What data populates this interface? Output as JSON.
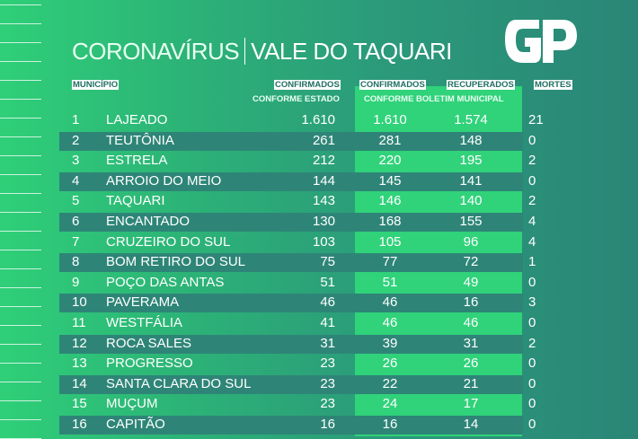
{
  "title": {
    "left": "CORONAVÍRUS",
    "right": "VALE DO TAQUARI"
  },
  "logo": "GP",
  "headers": {
    "municipio": "MUNICÍPIO",
    "conf_estado": "CONFIRMADOS",
    "conf_estado_sub": "CONFORME ESTADO",
    "conf_mun": "CONFIRMADOS",
    "recuperados": "RECUPERADOS",
    "boletim_sub": "CONFORME BOLETIM MUNICIPAL",
    "mortes": "MORTES"
  },
  "rows": [
    {
      "n": "1",
      "name": "LAJEADO",
      "estado": "1.610",
      "municipal": "1.610",
      "recuperados": "1.574",
      "mortes": "21"
    },
    {
      "n": "2",
      "name": "TEUTÔNIA",
      "estado": "261",
      "municipal": "281",
      "recuperados": "148",
      "mortes": "0"
    },
    {
      "n": "3",
      "name": "ESTRELA",
      "estado": "212",
      "municipal": "220",
      "recuperados": "195",
      "mortes": "2"
    },
    {
      "n": "4",
      "name": "ARROIO DO MEIO",
      "estado": "144",
      "municipal": "145",
      "recuperados": "141",
      "mortes": "0"
    },
    {
      "n": "5",
      "name": "TAQUARI",
      "estado": "143",
      "municipal": "146",
      "recuperados": "140",
      "mortes": "2"
    },
    {
      "n": "6",
      "name": "ENCANTADO",
      "estado": "130",
      "municipal": "168",
      "recuperados": "155",
      "mortes": "4"
    },
    {
      "n": "7",
      "name": "CRUZEIRO DO SUL",
      "estado": "103",
      "municipal": "105",
      "recuperados": "96",
      "mortes": "4"
    },
    {
      "n": "8",
      "name": "BOM RETIRO DO SUL",
      "estado": "75",
      "municipal": "77",
      "recuperados": "72",
      "mortes": "1"
    },
    {
      "n": "9",
      "name": "POÇO DAS ANTAS",
      "estado": "51",
      "municipal": "51",
      "recuperados": "49",
      "mortes": "0"
    },
    {
      "n": "10",
      "name": "PAVERAMA",
      "estado": "46",
      "municipal": "46",
      "recuperados": "16",
      "mortes": "3"
    },
    {
      "n": "11",
      "name": "WESTFÁLIA",
      "estado": "41",
      "municipal": "46",
      "recuperados": "46",
      "mortes": "0"
    },
    {
      "n": "12",
      "name": "ROCA SALES",
      "estado": "31",
      "municipal": "39",
      "recuperados": "31",
      "mortes": "2"
    },
    {
      "n": "13",
      "name": "PROGRESSO",
      "estado": "23",
      "municipal": "26",
      "recuperados": "26",
      "mortes": "0"
    },
    {
      "n": "14",
      "name": "SANTA CLARA DO SUL",
      "estado": "23",
      "municipal": "22",
      "recuperados": "21",
      "mortes": "0"
    },
    {
      "n": "15",
      "name": "MUÇUM",
      "estado": "23",
      "municipal": "24",
      "recuperados": "17",
      "mortes": "0"
    },
    {
      "n": "16",
      "name": "CAPITÃO",
      "estado": "16",
      "municipal": "16",
      "recuperados": "14",
      "mortes": "0"
    }
  ]
}
